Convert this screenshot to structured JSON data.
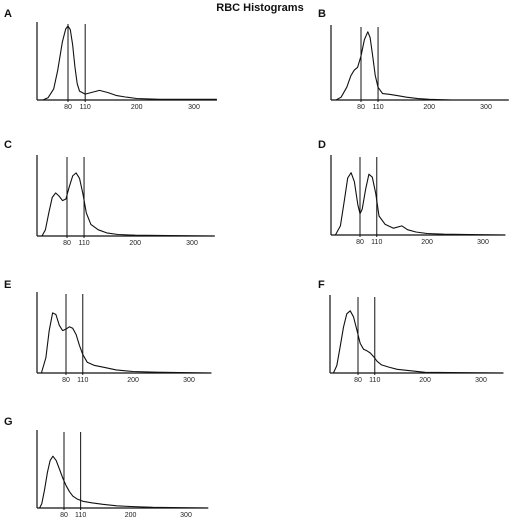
{
  "title": "RBC Histograms",
  "colors": {
    "line": "#111111",
    "background": "#ffffff"
  },
  "chart_data": [
    {
      "type": "line",
      "panel": "A",
      "x_ticks": [
        80,
        110,
        200,
        300
      ],
      "reference_lines": [
        80,
        110
      ],
      "xlim": [
        30,
        340
      ],
      "series": [
        {
          "points": [
            [
              36,
              0
            ],
            [
              45,
              3
            ],
            [
              55,
              15
            ],
            [
              62,
              40
            ],
            [
              70,
              78
            ],
            [
              76,
              96
            ],
            [
              80,
              100
            ],
            [
              84,
              95
            ],
            [
              88,
              75
            ],
            [
              92,
              45
            ],
            [
              96,
              22
            ],
            [
              100,
              12
            ],
            [
              110,
              8
            ],
            [
              120,
              10
            ],
            [
              135,
              13
            ],
            [
              150,
              10
            ],
            [
              165,
              6
            ],
            [
              180,
              4
            ],
            [
              200,
              2
            ],
            [
              240,
              1
            ],
            [
              340,
              1
            ]
          ]
        }
      ]
    },
    {
      "type": "line",
      "panel": "B",
      "x_ticks": [
        80,
        110,
        200,
        300
      ],
      "reference_lines": [
        80,
        110
      ],
      "xlim": [
        30,
        340
      ],
      "series": [
        {
          "points": [
            [
              36,
              0
            ],
            [
              45,
              4
            ],
            [
              55,
              18
            ],
            [
              62,
              34
            ],
            [
              68,
              42
            ],
            [
              74,
              46
            ],
            [
              80,
              62
            ],
            [
              86,
              85
            ],
            [
              92,
              96
            ],
            [
              96,
              88
            ],
            [
              100,
              65
            ],
            [
              105,
              35
            ],
            [
              110,
              18
            ],
            [
              118,
              9
            ],
            [
              130,
              8
            ],
            [
              145,
              6
            ],
            [
              160,
              4
            ],
            [
              180,
              2
            ],
            [
              200,
              1
            ],
            [
              240,
              0
            ],
            [
              340,
              0
            ]
          ]
        }
      ]
    },
    {
      "type": "line",
      "panel": "C",
      "x_ticks": [
        80,
        110,
        200,
        300
      ],
      "reference_lines": [
        80,
        110
      ],
      "xlim": [
        30,
        340
      ],
      "series": [
        {
          "points": [
            [
              36,
              0
            ],
            [
              42,
              8
            ],
            [
              48,
              30
            ],
            [
              54,
              50
            ],
            [
              60,
              56
            ],
            [
              66,
              52
            ],
            [
              72,
              46
            ],
            [
              78,
              48
            ],
            [
              84,
              64
            ],
            [
              90,
              78
            ],
            [
              96,
              82
            ],
            [
              102,
              75
            ],
            [
              108,
              55
            ],
            [
              114,
              30
            ],
            [
              122,
              15
            ],
            [
              135,
              8
            ],
            [
              150,
              4
            ],
            [
              170,
              2
            ],
            [
              200,
              1
            ],
            [
              340,
              0
            ]
          ]
        }
      ]
    },
    {
      "type": "line",
      "panel": "D",
      "x_ticks": [
        80,
        110,
        200,
        300
      ],
      "reference_lines": [
        80,
        110
      ],
      "xlim": [
        30,
        340
      ],
      "series": [
        {
          "points": [
            [
              36,
              0
            ],
            [
              45,
              12
            ],
            [
              52,
              45
            ],
            [
              58,
              75
            ],
            [
              64,
              82
            ],
            [
              70,
              70
            ],
            [
              76,
              40
            ],
            [
              80,
              28
            ],
            [
              84,
              34
            ],
            [
              90,
              60
            ],
            [
              96,
              80
            ],
            [
              102,
              76
            ],
            [
              108,
              55
            ],
            [
              114,
              25
            ],
            [
              125,
              14
            ],
            [
              140,
              9
            ],
            [
              155,
              12
            ],
            [
              165,
              7
            ],
            [
              180,
              4
            ],
            [
              200,
              2
            ],
            [
              230,
              1
            ],
            [
              340,
              0
            ]
          ]
        }
      ]
    },
    {
      "type": "line",
      "panel": "E",
      "x_ticks": [
        80,
        110,
        200,
        300
      ],
      "reference_lines": [
        80,
        110
      ],
      "xlim": [
        30,
        340
      ],
      "series": [
        {
          "points": [
            [
              36,
              0
            ],
            [
              44,
              20
            ],
            [
              50,
              55
            ],
            [
              56,
              78
            ],
            [
              62,
              76
            ],
            [
              68,
              62
            ],
            [
              74,
              55
            ],
            [
              80,
              57
            ],
            [
              86,
              60
            ],
            [
              92,
              58
            ],
            [
              98,
              50
            ],
            [
              104,
              36
            ],
            [
              110,
              24
            ],
            [
              118,
              14
            ],
            [
              130,
              10
            ],
            [
              150,
              7
            ],
            [
              170,
              4
            ],
            [
              200,
              2
            ],
            [
              240,
              1
            ],
            [
              340,
              0
            ]
          ]
        }
      ]
    },
    {
      "type": "line",
      "panel": "F",
      "x_ticks": [
        80,
        110,
        200,
        300
      ],
      "reference_lines": [
        80,
        110
      ],
      "xlim": [
        30,
        340
      ],
      "series": [
        {
          "points": [
            [
              36,
              0
            ],
            [
              42,
              10
            ],
            [
              48,
              35
            ],
            [
              54,
              62
            ],
            [
              60,
              80
            ],
            [
              66,
              84
            ],
            [
              72,
              76
            ],
            [
              78,
              58
            ],
            [
              84,
              40
            ],
            [
              90,
              32
            ],
            [
              96,
              30
            ],
            [
              102,
              27
            ],
            [
              108,
              22
            ],
            [
              114,
              16
            ],
            [
              122,
              11
            ],
            [
              135,
              8
            ],
            [
              150,
              5
            ],
            [
              175,
              3
            ],
            [
              200,
              1
            ],
            [
              340,
              0
            ]
          ]
        }
      ]
    },
    {
      "type": "line",
      "panel": "G",
      "x_ticks": [
        80,
        110,
        200,
        300
      ],
      "reference_lines": [
        80,
        110
      ],
      "xlim": [
        30,
        340
      ],
      "series": [
        {
          "points": [
            [
              36,
              0
            ],
            [
              40,
              6
            ],
            [
              45,
              25
            ],
            [
              50,
              48
            ],
            [
              55,
              64
            ],
            [
              60,
              70
            ],
            [
              66,
              64
            ],
            [
              72,
              52
            ],
            [
              78,
              40
            ],
            [
              84,
              30
            ],
            [
              90,
              22
            ],
            [
              96,
              16
            ],
            [
              104,
              12
            ],
            [
              114,
              9
            ],
            [
              130,
              7
            ],
            [
              150,
              5
            ],
            [
              175,
              3
            ],
            [
              200,
              2
            ],
            [
              240,
              1
            ],
            [
              340,
              0
            ]
          ]
        }
      ]
    }
  ]
}
